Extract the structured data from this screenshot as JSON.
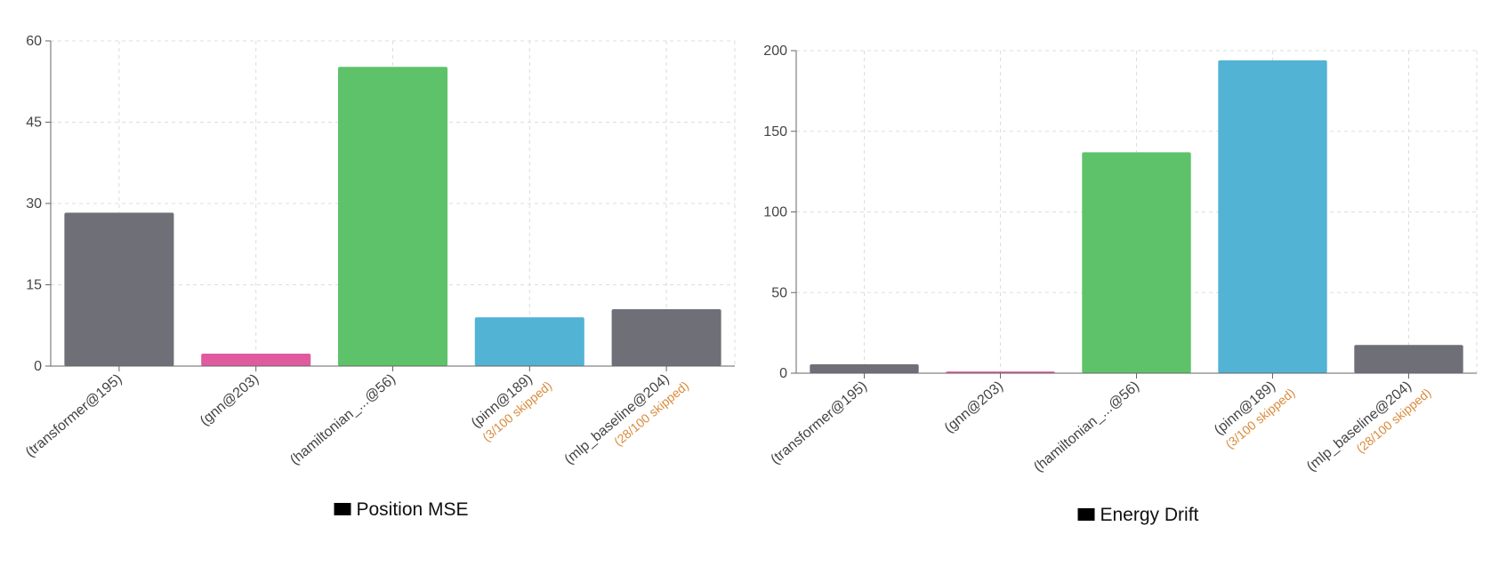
{
  "colors": {
    "grid": "#dddddd",
    "axis": "#666666",
    "skip_note": "#d98a3a",
    "legend_swatch": "#000000"
  },
  "chart_data": [
    {
      "type": "bar",
      "categories": [
        "(transformer@195)",
        "(gnn@203)",
        "(hamiltonian_...@56)",
        "(pinn@189)",
        "(mlp_baseline@204)"
      ],
      "skip_notes": [
        "",
        "",
        "",
        "(3/100 skipped)",
        "(28/100 skipped)"
      ],
      "series": [
        {
          "name": "Position MSE",
          "values": [
            28.3,
            2.3,
            55.2,
            9.0,
            10.5
          ]
        }
      ],
      "bar_colors": [
        "#6f6f78",
        "#e05aa0",
        "#5ec26a",
        "#52b3d4",
        "#6f6f78"
      ],
      "ylim": [
        0,
        60
      ],
      "yticks": [
        0,
        15,
        30,
        45,
        60
      ],
      "grid": true,
      "legend": "bottom"
    },
    {
      "type": "bar",
      "categories": [
        "(transformer@195)",
        "(gnn@203)",
        "(hamiltonian_...@56)",
        "(pinn@189)",
        "(mlp_baseline@204)"
      ],
      "skip_notes": [
        "",
        "",
        "",
        "(3/100 skipped)",
        "(28/100 skipped)"
      ],
      "series": [
        {
          "name": "Energy Drift",
          "values": [
            5.5,
            1.0,
            137,
            194,
            17.5
          ]
        }
      ],
      "bar_colors": [
        "#6f6f78",
        "#e05aa0",
        "#5ec26a",
        "#52b3d4",
        "#6f6f78"
      ],
      "ylim": [
        0,
        200
      ],
      "yticks": [
        0,
        50,
        100,
        150,
        200
      ],
      "grid": true,
      "legend": "bottom"
    }
  ]
}
